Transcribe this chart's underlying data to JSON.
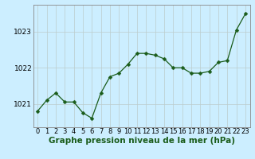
{
  "x": [
    0,
    1,
    2,
    3,
    4,
    5,
    6,
    7,
    8,
    9,
    10,
    11,
    12,
    13,
    14,
    15,
    16,
    17,
    18,
    19,
    20,
    21,
    22,
    23
  ],
  "y": [
    1020.8,
    1021.1,
    1021.3,
    1021.05,
    1021.05,
    1020.75,
    1020.6,
    1021.3,
    1021.75,
    1021.85,
    1022.1,
    1022.4,
    1022.4,
    1022.35,
    1022.25,
    1022.0,
    1022.0,
    1021.85,
    1021.85,
    1021.9,
    1022.15,
    1022.2,
    1023.05,
    1023.5
  ],
  "line_color": "#1a5c1a",
  "marker": "D",
  "marker_size": 2.5,
  "background_color": "#cceeff",
  "grid_color": "#bbcccc",
  "xlabel": "Graphe pression niveau de la mer (hPa)",
  "xlabel_fontsize": 7.5,
  "ylabel_ticks": [
    1021,
    1022,
    1023
  ],
  "ylim": [
    1020.35,
    1023.75
  ],
  "xlim": [
    -0.5,
    23.5
  ],
  "tick_fontsize": 6.5,
  "spine_color": "#888888",
  "label_color": "#1a5c1a"
}
